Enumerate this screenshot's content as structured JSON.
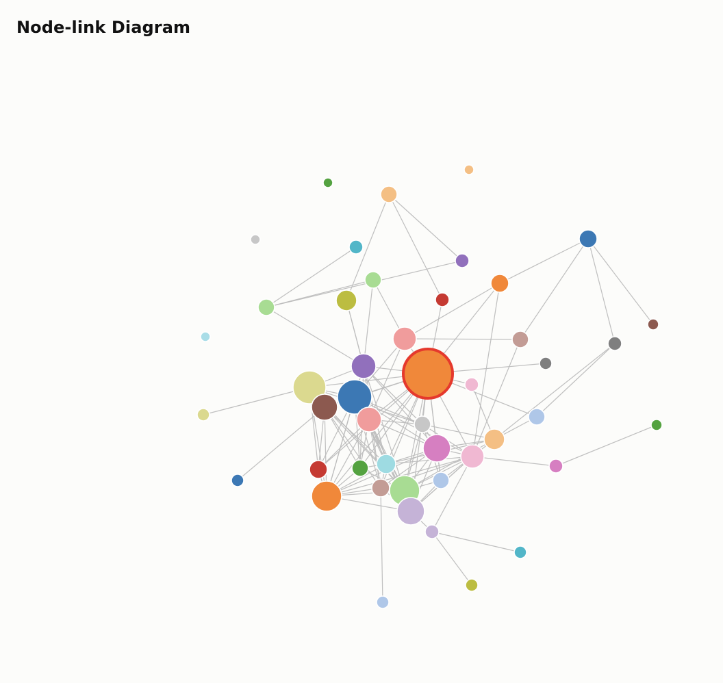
{
  "page": {
    "title": "Node-link Diagram"
  },
  "diagram": {
    "type": "node-link",
    "selected_node": "n1",
    "colors": {
      "background": "#fcfcfa",
      "edge": "#bdbdbd",
      "selected_stroke": "#e5392d",
      "node_stroke": "#ffffff"
    }
  }
}
